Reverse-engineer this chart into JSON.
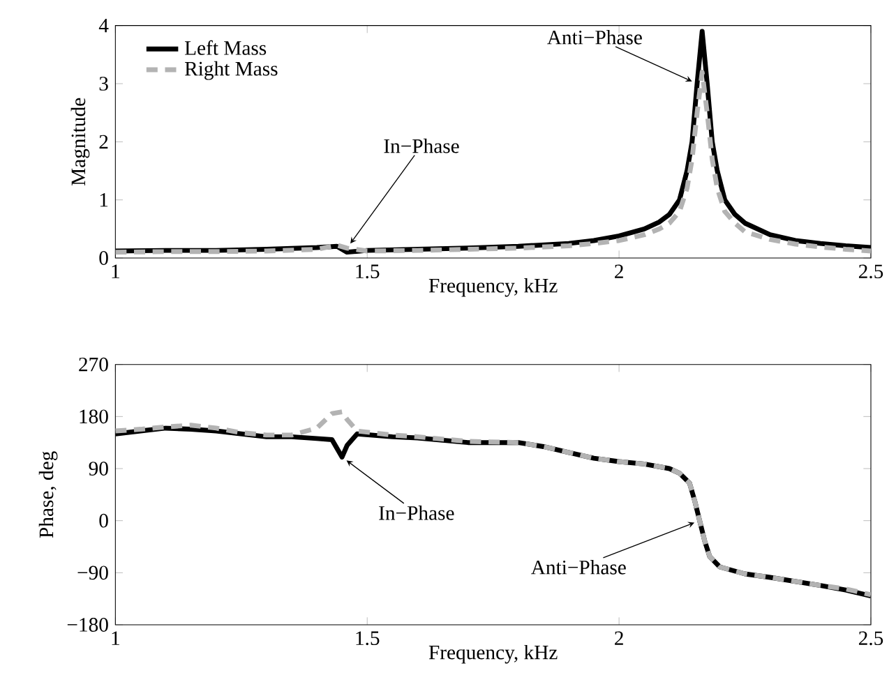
{
  "chart_data": [
    {
      "type": "line",
      "xlabel": "Frequency, kHz",
      "ylabel": "Magnitude",
      "xlim": [
        1,
        2.5
      ],
      "ylim": [
        0,
        4
      ],
      "xticks": [
        1,
        1.5,
        2,
        2.5
      ],
      "yticks": [
        0,
        1,
        2,
        3,
        4
      ],
      "grid": false,
      "legend": "top left",
      "series": [
        {
          "name": "Left Mass",
          "color": "#000000",
          "line_style": "solid",
          "x": [
            1,
            1.1,
            1.2,
            1.3,
            1.4,
            1.44,
            1.46,
            1.5,
            1.6,
            1.7,
            1.8,
            1.9,
            1.95,
            2.0,
            2.05,
            2.08,
            2.1,
            2.12,
            2.135,
            2.145,
            2.155,
            2.165,
            2.175,
            2.185,
            2.195,
            2.21,
            2.23,
            2.25,
            2.3,
            2.35,
            2.4,
            2.45,
            2.5
          ],
          "values": [
            0.12,
            0.13,
            0.13,
            0.15,
            0.18,
            0.2,
            0.1,
            0.13,
            0.15,
            0.17,
            0.2,
            0.25,
            0.3,
            0.38,
            0.5,
            0.62,
            0.75,
            1.0,
            1.5,
            2.0,
            3.0,
            3.9,
            3.0,
            2.0,
            1.5,
            1.0,
            0.75,
            0.6,
            0.4,
            0.3,
            0.25,
            0.21,
            0.18
          ]
        },
        {
          "name": "Right Mass",
          "color": "#b3b3b3",
          "line_style": "dashed",
          "x": [
            1,
            1.1,
            1.2,
            1.3,
            1.4,
            1.44,
            1.46,
            1.5,
            1.6,
            1.7,
            1.8,
            1.9,
            1.95,
            2.0,
            2.05,
            2.08,
            2.1,
            2.12,
            2.135,
            2.145,
            2.155,
            2.165,
            2.175,
            2.185,
            2.195,
            2.21,
            2.23,
            2.25,
            2.3,
            2.35,
            2.4,
            2.45,
            2.5
          ],
          "values": [
            0.1,
            0.11,
            0.11,
            0.12,
            0.15,
            0.22,
            0.17,
            0.12,
            0.13,
            0.15,
            0.17,
            0.21,
            0.25,
            0.3,
            0.4,
            0.5,
            0.6,
            0.8,
            1.2,
            1.7,
            2.5,
            3.2,
            2.5,
            1.7,
            1.2,
            0.8,
            0.6,
            0.45,
            0.32,
            0.24,
            0.19,
            0.15,
            0.12
          ]
        }
      ],
      "annotations": [
        {
          "text": "In−Phase",
          "x": 1.46,
          "y": 0.17
        },
        {
          "text": "Anti−Phase",
          "x": 2.155,
          "y": 3.0
        }
      ]
    },
    {
      "type": "line",
      "xlabel": "Frequency, kHz",
      "ylabel": "Phase, deg",
      "xlim": [
        1,
        2.5
      ],
      "ylim": [
        -180,
        270
      ],
      "xticks": [
        1,
        1.5,
        2,
        2.5
      ],
      "yticks": [
        {
          "value": -180,
          "label": "−180"
        },
        {
          "value": -90,
          "label": "−90"
        },
        0,
        90,
        180,
        270
      ],
      "grid": false,
      "series": [
        {
          "color": "#000000",
          "line_style": "solid",
          "x": [
            1,
            1.05,
            1.1,
            1.15,
            1.2,
            1.25,
            1.3,
            1.35,
            1.4,
            1.43,
            1.45,
            1.46,
            1.48,
            1.55,
            1.6,
            1.7,
            1.8,
            1.85,
            1.9,
            1.95,
            2.0,
            2.05,
            2.1,
            2.12,
            2.14,
            2.15,
            2.16,
            2.17,
            2.18,
            2.2,
            2.25,
            2.3,
            2.35,
            2.4,
            2.45,
            2.5
          ],
          "values": [
            150,
            155,
            160,
            158,
            155,
            150,
            145,
            145,
            142,
            140,
            110,
            130,
            150,
            145,
            143,
            135,
            135,
            128,
            118,
            108,
            102,
            98,
            90,
            82,
            65,
            35,
            0,
            -35,
            -62,
            -80,
            -92,
            -98,
            -105,
            -112,
            -120,
            -130
          ]
        },
        {
          "color": "#b3b3b3",
          "line_style": "dashed",
          "x": [
            1,
            1.05,
            1.1,
            1.15,
            1.2,
            1.25,
            1.3,
            1.35,
            1.4,
            1.43,
            1.45,
            1.46,
            1.48,
            1.55,
            1.6,
            1.7,
            1.8,
            1.85,
            1.9,
            1.95,
            2.0,
            2.05,
            2.1,
            2.12,
            2.14,
            2.15,
            2.16,
            2.17,
            2.18,
            2.2,
            2.25,
            2.3,
            2.35,
            2.4,
            2.45,
            2.5
          ],
          "values": [
            155,
            158,
            162,
            165,
            160,
            152,
            148,
            148,
            160,
            185,
            188,
            175,
            155,
            148,
            145,
            137,
            135,
            128,
            118,
            108,
            102,
            98,
            90,
            82,
            65,
            35,
            0,
            -35,
            -62,
            -80,
            -92,
            -98,
            -105,
            -112,
            -118,
            -128
          ]
        }
      ],
      "annotations": [
        {
          "text": "In−Phase",
          "x": 1.45,
          "y": 110
        },
        {
          "text": "Anti−Phase",
          "x": 2.16,
          "y": 0
        }
      ]
    }
  ]
}
